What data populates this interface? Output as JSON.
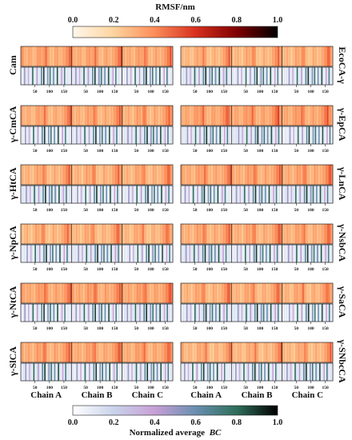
{
  "chart_data": {
    "type": "heatmap",
    "top_colorbar": {
      "label": "RMSF/nm",
      "ticks": [
        "0.0",
        "0.2",
        "0.4",
        "0.6",
        "0.8",
        "1.0"
      ],
      "range": [
        0,
        1
      ],
      "stops": [
        "#fff7ec",
        "#fdd49e",
        "#fc8d59",
        "#d7301f",
        "#7f0000",
        "#000000"
      ]
    },
    "bottom_colorbar": {
      "label": "Normalized average",
      "label_italic": "BC",
      "ticks": [
        "0.0",
        "0.2",
        "0.4",
        "0.6",
        "0.8",
        "1.0"
      ],
      "range": [
        0,
        1
      ],
      "stops": [
        "#ffffff",
        "#c9d3ea",
        "#c7a0d6",
        "#6a8fb0",
        "#2f6e5a",
        "#000000"
      ]
    },
    "residue_ticks": [
      "50",
      "100",
      "150"
    ],
    "chain_labels": [
      "Chain A",
      "Chain B",
      "Chain C"
    ],
    "proteins": [
      {
        "name": "Cam",
        "column": "left",
        "row": 0
      },
      {
        "name": "EcoCA-γ",
        "column": "right",
        "row": 0
      },
      {
        "name": "γ-CmCA",
        "column": "left",
        "row": 1
      },
      {
        "name": "γ-EpCA",
        "column": "right",
        "row": 1
      },
      {
        "name": "γ-HtCA",
        "column": "left",
        "row": 2
      },
      {
        "name": "γ-LnCA",
        "column": "right",
        "row": 2
      },
      {
        "name": "γ-NpCA",
        "column": "left",
        "row": 3
      },
      {
        "name": "γ-NsbCA",
        "column": "right",
        "row": 3
      },
      {
        "name": "γ-NtCA",
        "column": "left",
        "row": 4
      },
      {
        "name": "γ-SaCA",
        "column": "right",
        "row": 4
      },
      {
        "name": "γ-SlCA",
        "column": "left",
        "row": 5
      },
      {
        "name": "γ-SNbcCA",
        "column": "right",
        "row": 5
      }
    ],
    "rmsf_profile": {
      "residues": [
        1,
        15,
        30,
        45,
        60,
        75,
        85,
        95,
        110,
        120,
        135,
        150,
        165,
        175
      ],
      "values": [
        0.35,
        0.22,
        0.28,
        0.2,
        0.32,
        0.26,
        0.42,
        0.24,
        0.2,
        0.3,
        0.22,
        0.28,
        0.38,
        0.5
      ]
    },
    "bc_peaks": {
      "residues": [
        12,
        25,
        40,
        55,
        70,
        78,
        92,
        100,
        112,
        125,
        140,
        150
      ],
      "values": [
        0.5,
        0.35,
        0.8,
        0.45,
        0.65,
        0.9,
        0.55,
        0.75,
        0.6,
        0.85,
        0.4,
        0.7
      ]
    }
  }
}
